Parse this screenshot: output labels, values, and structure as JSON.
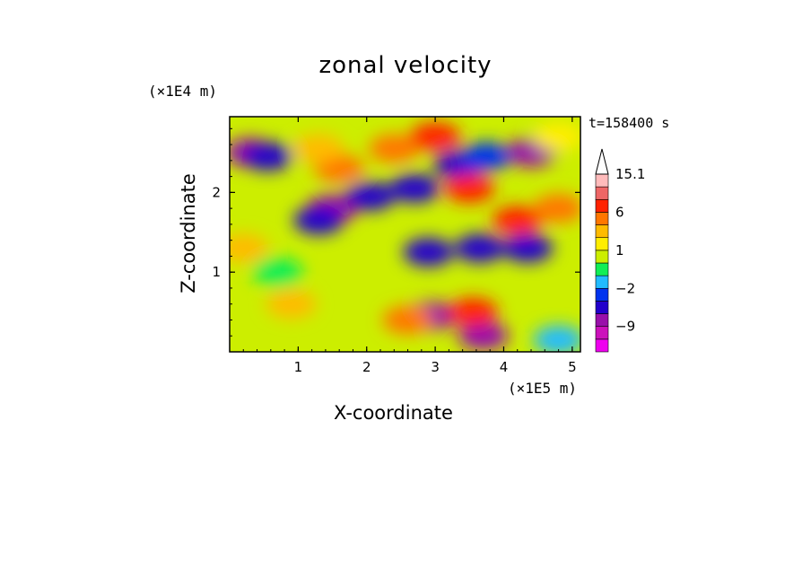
{
  "chart_data": {
    "type": "heatmap",
    "title": "zonal velocity",
    "xlabel": "X-coordinate",
    "ylabel": "Z-coordinate",
    "x_multiplier": "(×1E5 m)",
    "y_multiplier": "(×1E4 m)",
    "time_label": "t=158400 s",
    "xlim": [
      0,
      5.12
    ],
    "ylim": [
      0,
      2.95
    ],
    "x_ticks": [
      {
        "value": 1,
        "label": "1"
      },
      {
        "value": 2,
        "label": "2"
      },
      {
        "value": 3,
        "label": "3"
      },
      {
        "value": 4,
        "label": "4"
      },
      {
        "value": 5,
        "label": "5"
      }
    ],
    "y_ticks": [
      {
        "value": 1,
        "label": "1"
      },
      {
        "value": 2,
        "label": "2"
      }
    ],
    "colorbar": {
      "levels": [
        -15,
        -12,
        -9,
        -6,
        -3,
        -2,
        -1,
        0,
        1,
        2,
        3,
        6,
        9,
        12,
        15.1
      ],
      "colors": [
        "#ee00ee",
        "#cc11bb",
        "#9910aa",
        "#2200cc",
        "#0033ee",
        "#22bbff",
        "#11ee55",
        "#ccee00",
        "#ffee00",
        "#ffbb00",
        "#ff7700",
        "#ff2200",
        "#ee6666",
        "#ffbbbb"
      ],
      "extend_arrow_color": "#ffffff",
      "labels": [
        {
          "value": 15.1,
          "label": "15.1"
        },
        {
          "value": 6,
          "label": "6"
        },
        {
          "value": 1,
          "label": "1"
        },
        {
          "value": -2,
          "label": "−2"
        },
        {
          "value": -9,
          "label": "−9"
        }
      ]
    },
    "field_features": [
      {
        "x": 0.3,
        "z": 2.5,
        "value": -7
      },
      {
        "x": 0.55,
        "z": 2.45,
        "value": -4
      },
      {
        "x": 1.5,
        "z": 1.8,
        "value": -8
      },
      {
        "x": 1.3,
        "z": 1.65,
        "value": -5
      },
      {
        "x": 2.05,
        "z": 1.95,
        "value": -6
      },
      {
        "x": 2.7,
        "z": 2.05,
        "value": -6
      },
      {
        "x": 3.35,
        "z": 2.35,
        "value": -6
      },
      {
        "x": 4.4,
        "z": 2.5,
        "value": -7
      },
      {
        "x": 3.75,
        "z": 2.45,
        "value": -3
      },
      {
        "x": 1.6,
        "z": 2.3,
        "value": 4
      },
      {
        "x": 2.4,
        "z": 2.55,
        "value": 5
      },
      {
        "x": 3.5,
        "z": 2.05,
        "value": 6
      },
      {
        "x": 3.0,
        "z": 2.7,
        "value": 6
      },
      {
        "x": 4.2,
        "z": 1.65,
        "value": 7
      },
      {
        "x": 4.8,
        "z": 1.8,
        "value": 5
      },
      {
        "x": 2.9,
        "z": 1.25,
        "value": -4
      },
      {
        "x": 3.65,
        "z": 1.3,
        "value": -4
      },
      {
        "x": 4.35,
        "z": 1.3,
        "value": -5
      },
      {
        "x": 2.95,
        "z": 0.45,
        "value": -7
      },
      {
        "x": 3.7,
        "z": 0.2,
        "value": -8
      },
      {
        "x": 3.55,
        "z": 0.5,
        "value": 6
      },
      {
        "x": 2.6,
        "z": 0.4,
        "value": 4
      },
      {
        "x": 4.8,
        "z": 0.15,
        "value": -2
      },
      {
        "x": 0.9,
        "z": 0.6,
        "value": 2
      },
      {
        "x": 0.2,
        "z": 1.3,
        "value": 2
      },
      {
        "x": 1.3,
        "z": 2.55,
        "value": 2
      },
      {
        "x": 4.8,
        "z": 2.7,
        "value": 1
      },
      {
        "x": 0.7,
        "z": 1.0,
        "value": -1
      }
    ]
  }
}
